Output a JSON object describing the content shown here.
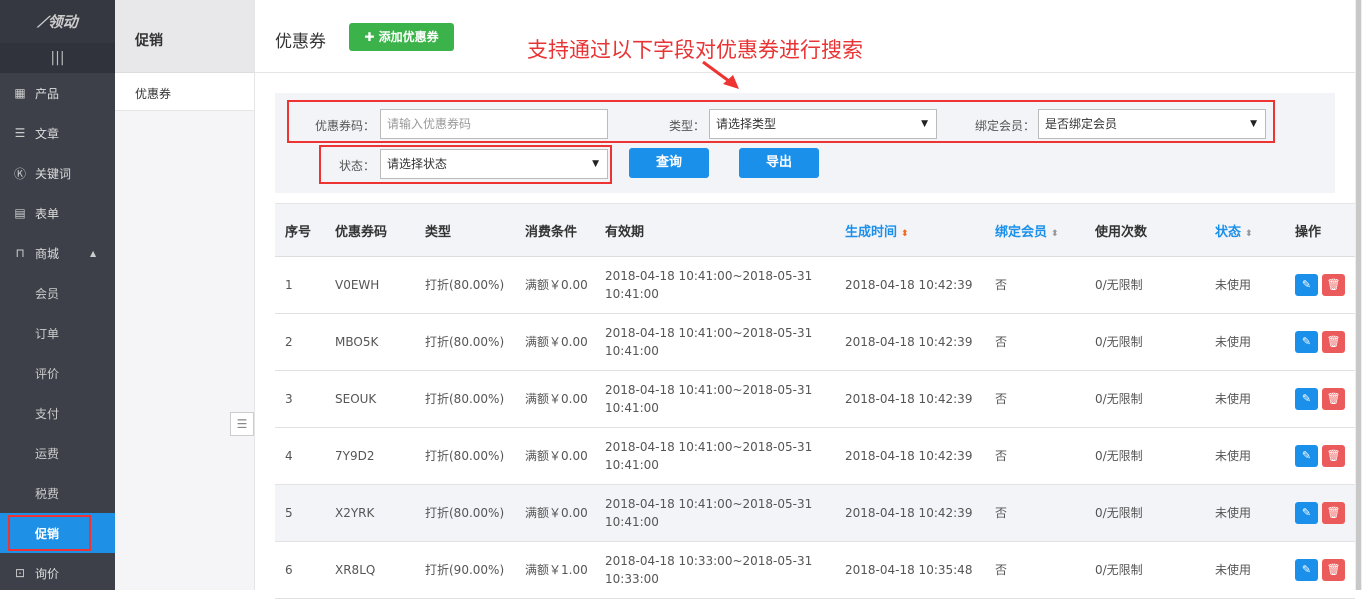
{
  "sidebar": {
    "logo": "易领动",
    "menu_icon": "hamburger-icon",
    "items": [
      {
        "label": "产品",
        "icon": "grid-icon"
      },
      {
        "label": "文章",
        "icon": "document-icon"
      },
      {
        "label": "关键词",
        "icon": "k-icon"
      },
      {
        "label": "表单",
        "icon": "clipboard-icon"
      },
      {
        "label": "商城",
        "icon": "bag-icon"
      }
    ],
    "sub_items": [
      "会员",
      "订单",
      "评价",
      "支付",
      "运费",
      "税费",
      "促销"
    ],
    "last_item": {
      "label": "询价",
      "icon": "inquiry-icon"
    }
  },
  "subpanel": {
    "title": "促销",
    "items": [
      "优惠券"
    ]
  },
  "header": {
    "title": "优惠券",
    "add_button": "添加优惠券"
  },
  "annotation": "支持通过以下字段对优惠券进行搜索",
  "filter": {
    "code_label": "优惠券码：",
    "code_placeholder": "请输入优惠券码",
    "type_label": "类型：",
    "type_value": "请选择类型",
    "member_label": "绑定会员：",
    "member_value": "是否绑定会员",
    "status_label": "状态：",
    "status_value": "请选择状态",
    "search_button": "查询",
    "export_button": "导出"
  },
  "table": {
    "columns": [
      "序号",
      "优惠券码",
      "类型",
      "消费条件",
      "有效期",
      "生成时间",
      "绑定会员",
      "使用次数",
      "状态",
      "操作"
    ],
    "rows": [
      [
        "1",
        "V0EWH",
        "打折(80.00%)",
        "满额￥0.00",
        "2018-04-18 10:41:00~2018-05-31 10:41:00",
        "2018-04-18 10:42:39",
        "否",
        "0/无限制",
        "未使用"
      ],
      [
        "2",
        "MBO5K",
        "打折(80.00%)",
        "满额￥0.00",
        "2018-04-18 10:41:00~2018-05-31 10:41:00",
        "2018-04-18 10:42:39",
        "否",
        "0/无限制",
        "未使用"
      ],
      [
        "3",
        "SEOUK",
        "打折(80.00%)",
        "满额￥0.00",
        "2018-04-18 10:41:00~2018-05-31 10:41:00",
        "2018-04-18 10:42:39",
        "否",
        "0/无限制",
        "未使用"
      ],
      [
        "4",
        "7Y9D2",
        "打折(80.00%)",
        "满额￥0.00",
        "2018-04-18 10:41:00~2018-05-31 10:41:00",
        "2018-04-18 10:42:39",
        "否",
        "0/无限制",
        "未使用"
      ],
      [
        "5",
        "X2YRK",
        "打折(80.00%)",
        "满额￥0.00",
        "2018-04-18 10:41:00~2018-05-31 10:41:00",
        "2018-04-18 10:42:39",
        "否",
        "0/无限制",
        "未使用"
      ],
      [
        "6",
        "XR8LQ",
        "打折(90.00%)",
        "满额￥1.00",
        "2018-04-18 10:33:00~2018-05-31 10:33:00",
        "2018-04-18 10:35:48",
        "否",
        "0/无限制",
        "未使用"
      ]
    ]
  },
  "colors": {
    "primary": "#1a90ea",
    "add": "#3cb34a",
    "delete": "#ec5b5b",
    "annotation": "#e83434",
    "sort_active": "#f26b21"
  }
}
